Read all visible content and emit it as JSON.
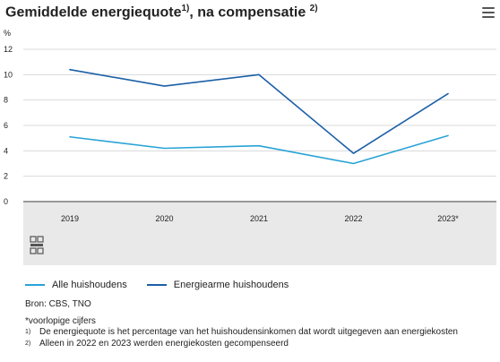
{
  "header": {
    "title_main": "Gemiddelde energiequote",
    "title_sup1": "1)",
    "title_mid": ", na compensatie",
    "title_sup2": "2)",
    "menu_icon": "hamburger-menu-icon"
  },
  "chart_data": {
    "type": "line",
    "categories": [
      "2019",
      "2020",
      "2021",
      "2022",
      "2023*"
    ],
    "ylabel": "%",
    "ylim": [
      0,
      12
    ],
    "yticks": [
      "0",
      "2",
      "4",
      "6",
      "8",
      "10",
      "12"
    ],
    "grid": true,
    "legend_position": "bottom-left",
    "series": [
      {
        "name": "Alle huishoudens",
        "color": "#29a3d6",
        "values": [
          5.1,
          4.2,
          4.4,
          3.0,
          5.2
        ]
      },
      {
        "name": "Energiearme huishoudens",
        "color": "#1b5fa6",
        "values": [
          10.4,
          9.1,
          10.0,
          3.8,
          8.5
        ]
      }
    ]
  },
  "logo": {
    "icon": "cbs-logo-icon"
  },
  "footer": {
    "source": "Bron: CBS, TNO",
    "note": "*voorlopige cijfers",
    "fn1_mark": "1)",
    "fn1_text": "De energiequote is het percentage van het huishoudensinkomen dat wordt uitgegeven aan energiekosten",
    "fn2_mark": "2)",
    "fn2_text": "Alleen in 2022 en 2023 werden energiekosten gecompenseerd"
  }
}
